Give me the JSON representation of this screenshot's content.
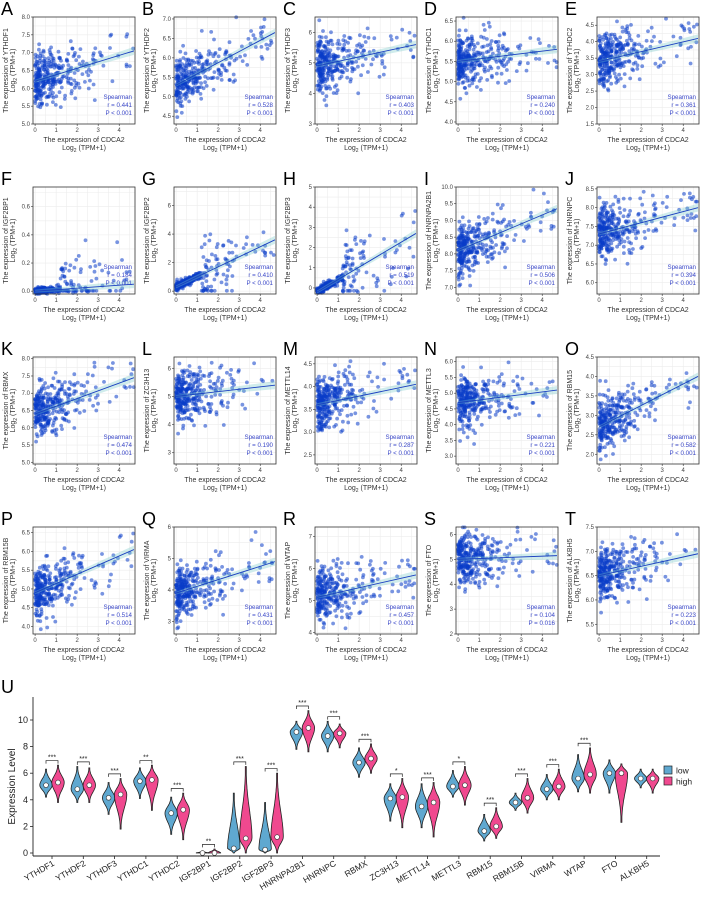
{
  "chart_data": [
    {
      "type": "scatter",
      "x_label": "The expression of CDCA2",
      "log_prefix": "Log",
      "log_sub": "2",
      "log_suffix": " (TPM+1)",
      "y_prefix": "The expression of ",
      "stat_method": "Spearman",
      "xlim": [
        -0.1,
        4.75
      ],
      "xticks": [
        0,
        1,
        2,
        3,
        4
      ],
      "panels": [
        {
          "letter": "A",
          "gene": "YTHDF1",
          "ylim": [
            5,
            8
          ],
          "yticks": [
            "5.0",
            "5.5",
            "6.0",
            "6.5",
            "7.0",
            "7.5",
            "8.0"
          ],
          "r": "r = 0.441",
          "p": "P < 0.001",
          "fit": [
            6.2,
            7.05
          ]
        },
        {
          "letter": "B",
          "gene": "YTHDF2",
          "ylim": [
            4.3,
            7.05
          ],
          "yticks": [
            "4.5",
            "5.0",
            "5.5",
            "6.0",
            "6.5",
            "7.0"
          ],
          "r": "r = 0.528",
          "p": "P < 0.001",
          "fit": [
            5.3,
            6.65
          ]
        },
        {
          "letter": "C",
          "gene": "YTHDF3",
          "ylim": [
            3,
            6.5
          ],
          "yticks": [
            "3",
            "4",
            "5",
            "6"
          ],
          "r": "r = 0.403",
          "p": "P < 0.001",
          "fit": [
            4.9,
            5.6
          ]
        },
        {
          "letter": "D",
          "gene": "YTHDC1",
          "ylim": [
            3.95,
            6.6
          ],
          "yticks": [
            "4.0",
            "4.5",
            "5.0",
            "5.5",
            "6.0",
            "6.5"
          ],
          "r": "r = 0.240",
          "p": "P < 0.001",
          "fit": [
            5.5,
            5.8
          ]
        },
        {
          "letter": "E",
          "gene": "YTHDC2",
          "ylim": [
            1.5,
            4.75
          ],
          "yticks": [
            "1.5",
            "2.0",
            "2.5",
            "3.0",
            "3.5",
            "4.0",
            "4.5"
          ],
          "r": "r = 0.361",
          "p": "P < 0.001",
          "fit": [
            3.4,
            4.1
          ]
        },
        {
          "letter": "F",
          "gene": "IGF2BP1",
          "ylim": [
            -0.02,
            0.74
          ],
          "yticks": [
            "0.0",
            "0.2",
            "0.4",
            "0.6"
          ],
          "r": "r = 0.184",
          "p": "P < 0.001",
          "fit": [
            0.0,
            0.05
          ]
        },
        {
          "letter": "G",
          "gene": "IGF2BP2",
          "ylim": [
            -0.2,
            7.3
          ],
          "yticks": [
            "0",
            "2",
            "4",
            "6"
          ],
          "r": "r = 0.410",
          "p": "P < 0.001",
          "fit": [
            0.3,
            3.6
          ]
        },
        {
          "letter": "H",
          "gene": "IGF2BP3",
          "ylim": [
            -0.3,
            5
          ],
          "yticks": [
            "0",
            "1",
            "2",
            "3",
            "4",
            "5"
          ],
          "r": "r = 0.519",
          "p": "P < 0.001",
          "fit": [
            -0.2,
            2.7
          ]
        },
        {
          "letter": "I",
          "gene": "HNRNPA2B1",
          "ylim": [
            6.8,
            10
          ],
          "yticks": [
            "7.0",
            "7.5",
            "8.0",
            "8.5",
            "9.0",
            "9.5",
            "10.0"
          ],
          "r": "r = 0.506",
          "p": "P < 0.001",
          "fit": [
            8.1,
            9.35
          ]
        },
        {
          "letter": "J",
          "gene": "HNRNPC",
          "ylim": [
            5.7,
            8.55
          ],
          "yticks": [
            "6.0",
            "6.5",
            "7.0",
            "7.5",
            "8.0",
            "8.5"
          ],
          "r": "r = 0.394",
          "p": "P < 0.001",
          "fit": [
            7.3,
            8.0
          ]
        },
        {
          "letter": "K",
          "gene": "RBMX",
          "ylim": [
            4.95,
            8.05
          ],
          "yticks": [
            "5.0",
            "5.5",
            "6.0",
            "6.5",
            "7.0",
            "7.5",
            "8.0"
          ],
          "r": "r = 0.474",
          "p": "P < 0.001",
          "fit": [
            6.4,
            7.45
          ]
        },
        {
          "letter": "L",
          "gene": "ZC3H13",
          "ylim": [
            2.6,
            6.4
          ],
          "yticks": [
            "3",
            "4",
            "5",
            "6"
          ],
          "r": "r = 0.190",
          "p": "P < 0.001",
          "fit": [
            5.0,
            5.4
          ]
        },
        {
          "letter": "M",
          "gene": "METTL14",
          "ylim": [
            2.3,
            4.65
          ],
          "yticks": [
            "2.5",
            "3.0",
            "3.5",
            "4.0",
            "4.5"
          ],
          "r": "r = 0.287",
          "p": "P < 0.001",
          "fit": [
            3.6,
            4.05
          ]
        },
        {
          "letter": "N",
          "gene": "METTL3",
          "ylim": [
            2.75,
            6.15
          ],
          "yticks": [
            "3.0",
            "3.5",
            "4.0",
            "4.5",
            "5.0",
            "5.5",
            "6.0"
          ],
          "r": "r = 0.221",
          "p": "P < 0.001",
          "fit": [
            4.7,
            5.1
          ]
        },
        {
          "letter": "O",
          "gene": "RBM15",
          "ylim": [
            1.75,
            4.5
          ],
          "yticks": [
            "2.0",
            "2.5",
            "3.0",
            "3.5",
            "4.0",
            "4.5"
          ],
          "r": "r = 0.582",
          "p": "P < 0.001",
          "fit": [
            2.7,
            4.0
          ]
        },
        {
          "letter": "P",
          "gene": "RBM15B",
          "ylim": [
            3.8,
            6.65
          ],
          "yticks": [
            "4.0",
            "4.5",
            "5.0",
            "5.5",
            "6.0",
            "6.5"
          ],
          "r": "r = 0.514",
          "p": "P < 0.001",
          "fit": [
            4.9,
            6.05
          ]
        },
        {
          "letter": "Q",
          "gene": "VIRMA",
          "ylim": [
            2.6,
            6
          ],
          "yticks": [
            "3",
            "4",
            "5",
            "6"
          ],
          "r": "r = 0.431",
          "p": "P < 0.001",
          "fit": [
            3.9,
            4.9
          ]
        },
        {
          "letter": "R",
          "gene": "WTAP",
          "ylim": [
            3.95,
            7.3
          ],
          "yticks": [
            "4",
            "5",
            "6",
            "7"
          ],
          "r": "r = 0.457",
          "p": "P < 0.001",
          "fit": [
            5.1,
            5.8
          ]
        },
        {
          "letter": "S",
          "gene": "FTO",
          "ylim": [
            2,
            6.3
          ],
          "yticks": [
            "2",
            "3",
            "4",
            "5",
            "6"
          ],
          "r": "r = 0.104",
          "p": "P = 0.016",
          "fit": [
            5.0,
            5.15
          ]
        },
        {
          "letter": "T",
          "gene": "ALKBH5",
          "ylim": [
            5.3,
            7.5
          ],
          "yticks": [
            "5.5",
            "6.0",
            "6.5",
            "7.0",
            "7.5"
          ],
          "r": "r = 0.223",
          "p": "P < 0.001",
          "fit": [
            6.5,
            6.95
          ]
        }
      ]
    },
    {
      "type": "violin",
      "letter": "U",
      "ylabel": "Expression Level",
      "ylim": [
        0,
        11.5
      ],
      "yticks": [
        0,
        2,
        4,
        6,
        8,
        10
      ],
      "legend": [
        {
          "name": "low",
          "color": "#5fa8d0"
        },
        {
          "name": "high",
          "color": "#f0498f"
        }
      ],
      "categories": [
        {
          "name": "YTHDF1",
          "low": {
            "median": 5.1,
            "range": [
              4.2,
              6.3
            ]
          },
          "high": {
            "median": 5.3,
            "range": [
              3.8,
              6.6
            ]
          },
          "sig": "***"
        },
        {
          "name": "YTHDF2",
          "low": {
            "median": 4.8,
            "range": [
              3.8,
              6.5
            ]
          },
          "high": {
            "median": 5.1,
            "range": [
              3.8,
              6.4
            ]
          },
          "sig": "***"
        },
        {
          "name": "YTHDF3",
          "low": {
            "median": 4.15,
            "range": [
              2.9,
              5.3
            ]
          },
          "high": {
            "median": 4.4,
            "range": [
              1.8,
              5.6
            ]
          },
          "sig": "***"
        },
        {
          "name": "YTHDC1",
          "low": {
            "median": 5.4,
            "range": [
              4.1,
              6.4
            ]
          },
          "high": {
            "median": 5.5,
            "range": [
              3.2,
              6.6
            ]
          },
          "sig": "**"
        },
        {
          "name": "YTHDC2",
          "low": {
            "median": 3.0,
            "range": [
              1.4,
              4.2
            ]
          },
          "high": {
            "median": 3.25,
            "range": [
              1.0,
              4.5
            ]
          },
          "sig": "***"
        },
        {
          "name": "IGF2BP1",
          "low": {
            "median": 0.0,
            "range": [
              0,
              0.1
            ]
          },
          "high": {
            "median": 0.0,
            "range": [
              0,
              0.3
            ]
          },
          "sig": "**"
        },
        {
          "name": "IGF2BP2",
          "low": {
            "median": 0.35,
            "range": [
              0,
              4.5
            ]
          },
          "high": {
            "median": 1.1,
            "range": [
              0,
              6.5
            ]
          },
          "sig": "***"
        },
        {
          "name": "IGF2BP3",
          "low": {
            "median": 0.25,
            "range": [
              0,
              3.8
            ]
          },
          "high": {
            "median": 1.2,
            "range": [
              0,
              6.0
            ]
          },
          "sig": "***"
        },
        {
          "name": "HNRNPA2B1",
          "low": {
            "median": 9.1,
            "range": [
              7.8,
              9.9
            ]
          },
          "high": {
            "median": 9.4,
            "range": [
              7.6,
              10.7
            ]
          },
          "sig": "***"
        },
        {
          "name": "HNRNPC",
          "low": {
            "median": 8.8,
            "range": [
              7.6,
              9.9
            ]
          },
          "high": {
            "median": 9.0,
            "range": [
              7.9,
              9.7
            ]
          },
          "sig": "***"
        },
        {
          "name": "RBMX",
          "low": {
            "median": 6.8,
            "range": [
              5.7,
              7.9
            ]
          },
          "high": {
            "median": 7.1,
            "range": [
              6.0,
              8.2
            ]
          },
          "sig": "***"
        },
        {
          "name": "ZC3H13",
          "low": {
            "median": 4.1,
            "range": [
              2.4,
              5.2
            ]
          },
          "high": {
            "median": 4.2,
            "range": [
              1.9,
              5.6
            ]
          },
          "sig": "*"
        },
        {
          "name": "METTL14",
          "low": {
            "median": 3.5,
            "range": [
              1.9,
              5.2
            ]
          },
          "high": {
            "median": 3.8,
            "range": [
              1.2,
              5.3
            ]
          },
          "sig": "***"
        },
        {
          "name": "METTL3",
          "low": {
            "median": 5.0,
            "range": [
              4.2,
              6.2
            ]
          },
          "high": {
            "median": 5.1,
            "range": [
              3.6,
              6.5
            ]
          },
          "sig": "*"
        },
        {
          "name": "RBM15",
          "low": {
            "median": 1.65,
            "range": [
              0.9,
              2.9
            ]
          },
          "high": {
            "median": 2.0,
            "range": [
              1.1,
              3.4
            ]
          },
          "sig": "***"
        },
        {
          "name": "RBM15B",
          "low": {
            "median": 3.8,
            "range": [
              3.2,
              4.5
            ]
          },
          "high": {
            "median": 4.15,
            "range": [
              3.0,
              5.6
            ]
          },
          "sig": "***"
        },
        {
          "name": "VIRMA",
          "low": {
            "median": 4.8,
            "range": [
              4.0,
              5.9
            ]
          },
          "high": {
            "median": 5.0,
            "range": [
              4.0,
              6.3
            ]
          },
          "sig": "***"
        },
        {
          "name": "WTAP",
          "low": {
            "median": 5.6,
            "range": [
              4.6,
              7.4
            ]
          },
          "high": {
            "median": 5.9,
            "range": [
              4.5,
              7.9
            ]
          },
          "sig": "***"
        },
        {
          "name": "FTO",
          "low": {
            "median": 6.0,
            "range": [
              4.5,
              7.0
            ]
          },
          "high": {
            "median": 6.0,
            "range": [
              2.3,
              6.7
            ]
          },
          "sig": ""
        },
        {
          "name": "ALKBH5",
          "low": {
            "median": 5.6,
            "range": [
              4.9,
              6.3
            ]
          },
          "high": {
            "median": 5.6,
            "range": [
              4.5,
              6.3
            ]
          },
          "sig": ""
        }
      ]
    }
  ]
}
